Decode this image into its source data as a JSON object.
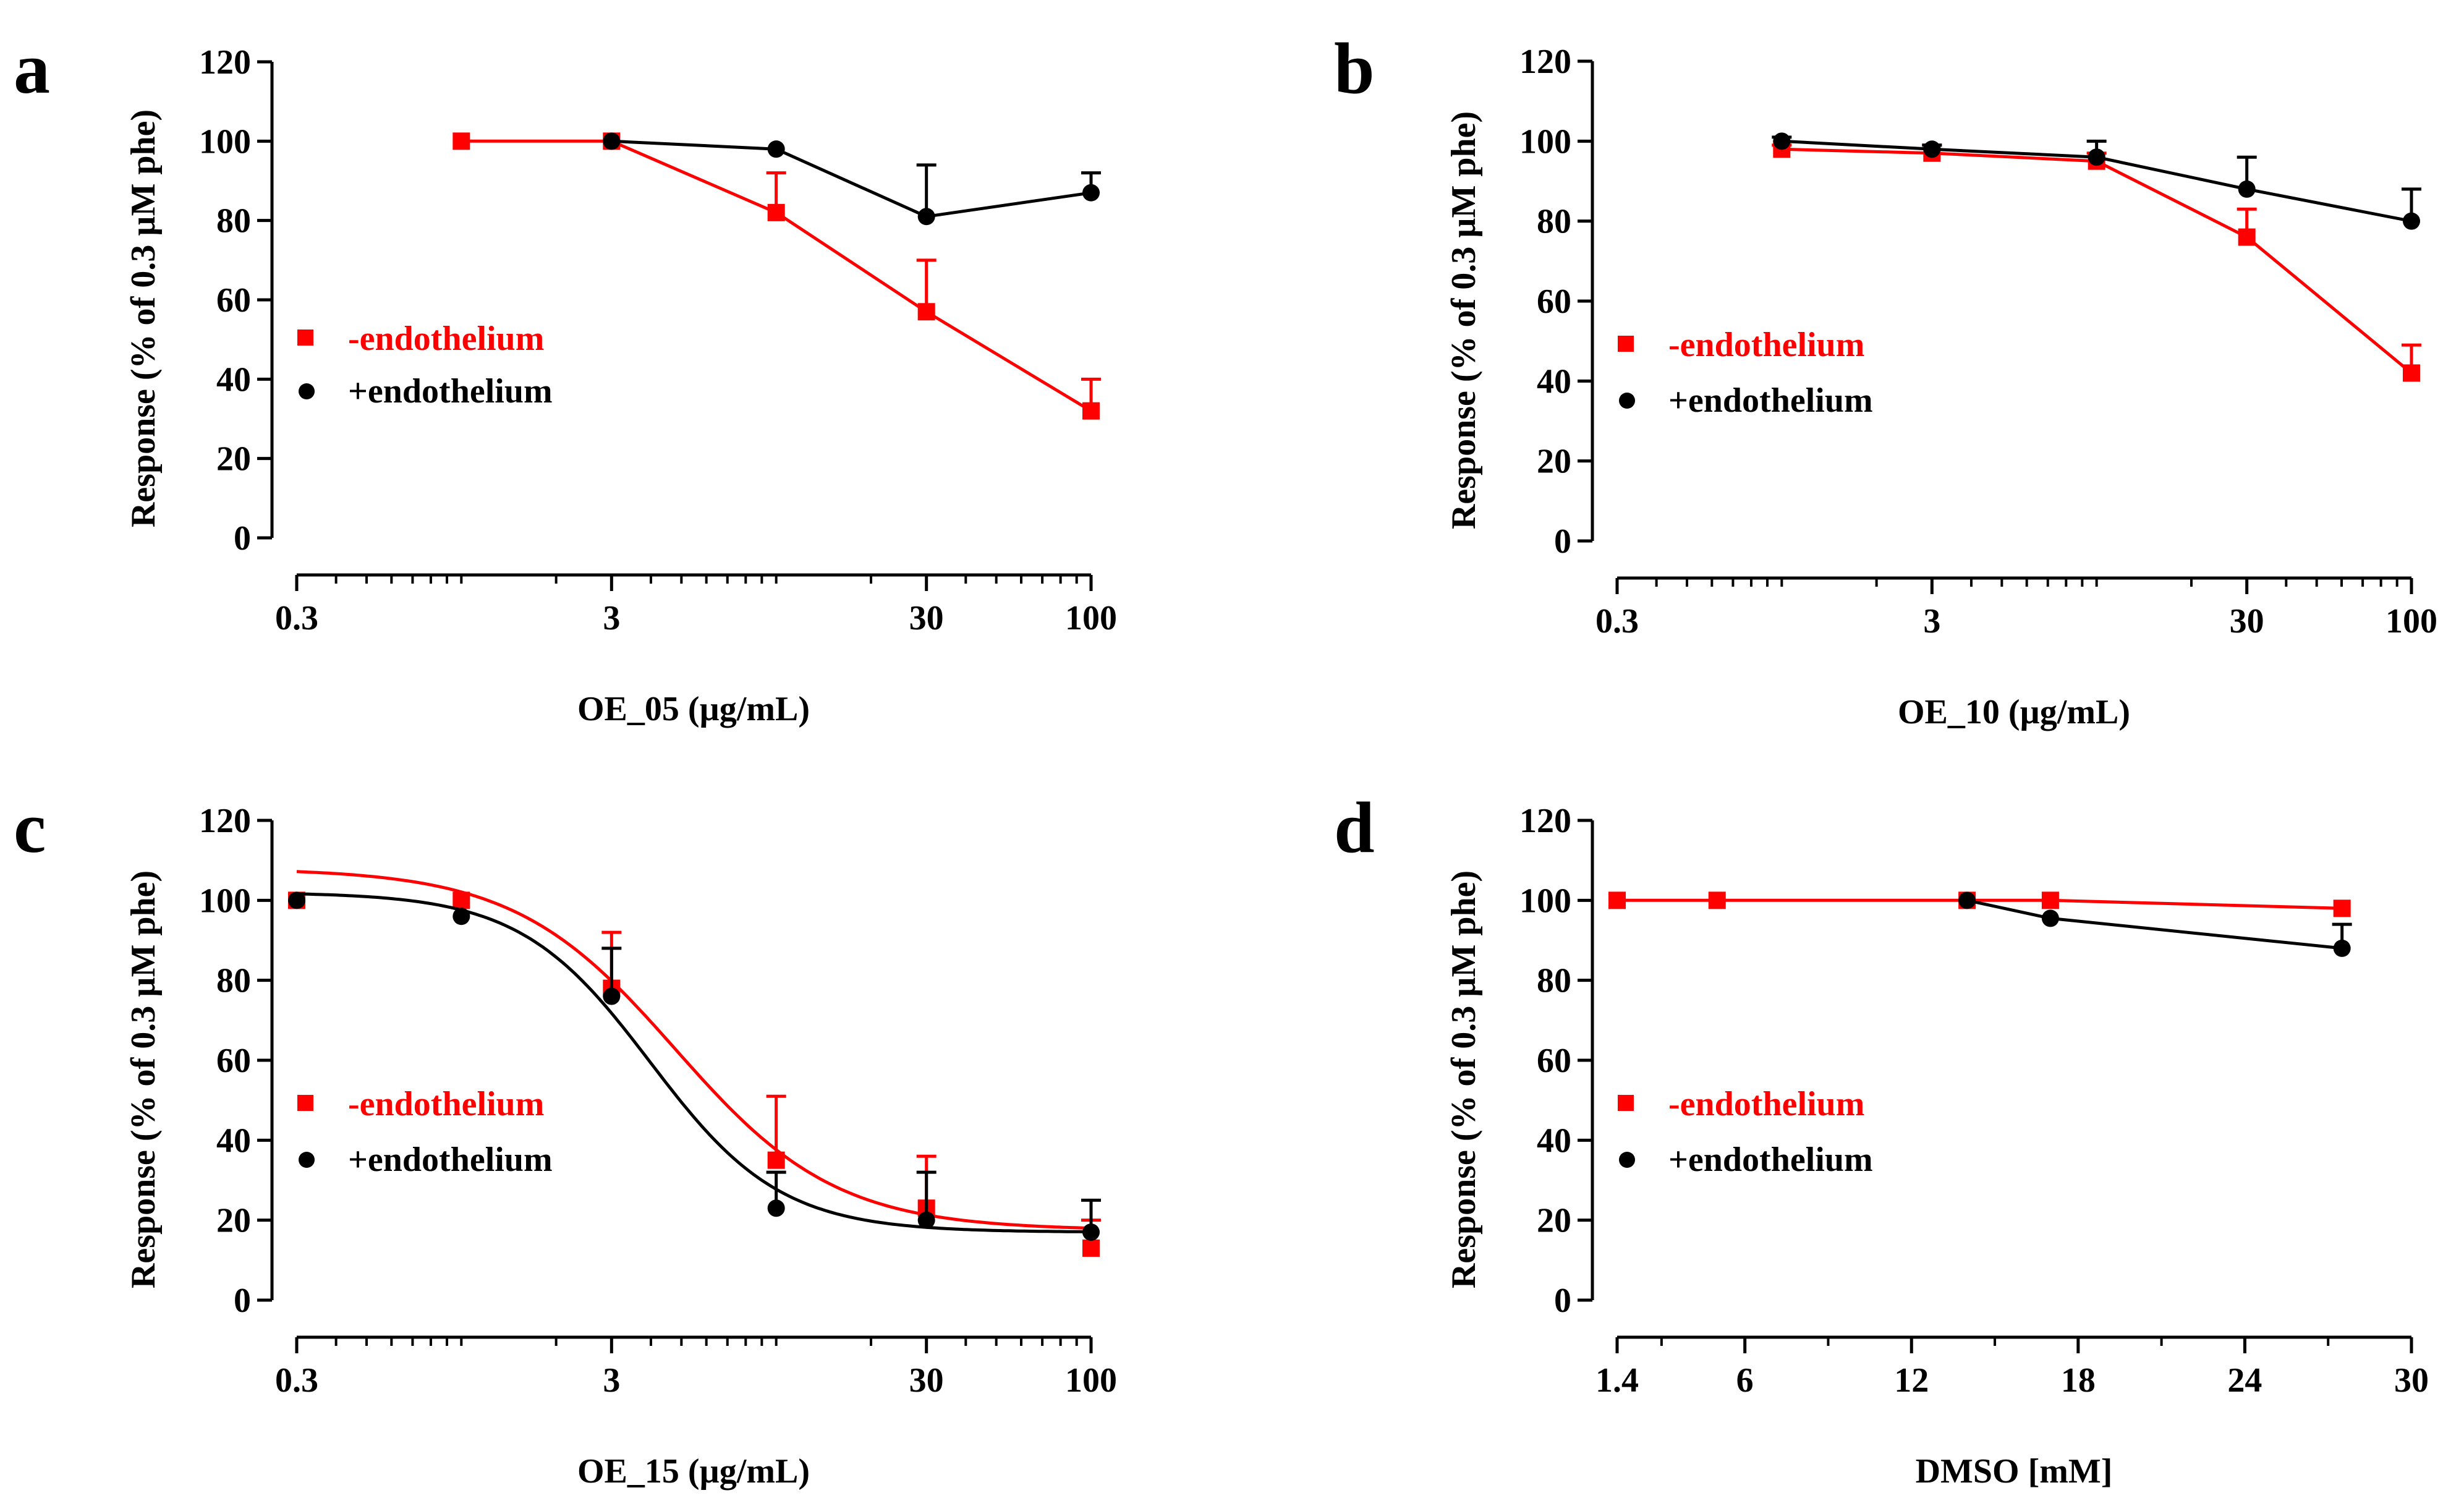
{
  "colors": {
    "minus": "#ff0000",
    "plus": "#000000"
  },
  "chart_data": [
    {
      "panel": "a",
      "type": "scatter",
      "xscale": "log",
      "xlim": [
        0.3,
        100
      ],
      "ylim": [
        0,
        120
      ],
      "xticks": [
        0.3,
        3,
        30,
        100
      ],
      "xtick_labels": [
        "0.3",
        "3",
        "30",
        "100"
      ],
      "yticks": [
        0,
        20,
        40,
        60,
        80,
        100,
        120
      ],
      "ytick_labels": [
        "0",
        "20",
        "40",
        "60",
        "80",
        "100",
        "120"
      ],
      "xlabel": "OE_05 (µg/mL)",
      "ylabel": "Response (% of 0.3 µM phe)",
      "legend": [
        "-endothelium",
        "+endothelium"
      ],
      "series": [
        {
          "name": "-endothelium",
          "color": "#ff0000",
          "marker": "square",
          "line": "connect",
          "x": [
            1,
            3,
            10,
            30,
            100
          ],
          "y": [
            100,
            100,
            82,
            57,
            32
          ],
          "err": [
            0,
            0,
            10,
            13,
            8
          ]
        },
        {
          "name": "+endothelium",
          "color": "#000000",
          "marker": "circle",
          "line": "connect",
          "x": [
            3,
            10,
            30,
            100
          ],
          "y": [
            100,
            98,
            81,
            87
          ],
          "err": [
            0,
            0,
            13,
            5
          ]
        }
      ]
    },
    {
      "panel": "b",
      "type": "scatter",
      "xscale": "log",
      "xlim": [
        0.3,
        100
      ],
      "ylim": [
        0,
        120
      ],
      "xticks": [
        0.3,
        3,
        30,
        100
      ],
      "xtick_labels": [
        "0.3",
        "3",
        "30",
        "100"
      ],
      "yticks": [
        0,
        20,
        40,
        60,
        80,
        100,
        120
      ],
      "ytick_labels": [
        "0",
        "20",
        "40",
        "60",
        "80",
        "100",
        "120"
      ],
      "xlabel": "OE_10 (µg/mL)",
      "ylabel": "Response (% of 0.3 µM phe)",
      "legend": [
        "-endothelium",
        "+endothelium"
      ],
      "series": [
        {
          "name": "-endothelium",
          "color": "#ff0000",
          "marker": "square",
          "line": "connect",
          "x": [
            1,
            3,
            10,
            30,
            100
          ],
          "y": [
            98,
            97,
            95,
            76,
            42
          ],
          "err": [
            1,
            2,
            2,
            7,
            7
          ]
        },
        {
          "name": "+endothelium",
          "color": "#000000",
          "marker": "circle",
          "line": "connect",
          "x": [
            1,
            3,
            10,
            30,
            100
          ],
          "y": [
            100,
            98,
            96,
            88,
            80
          ],
          "err": [
            1,
            1,
            4,
            8,
            8
          ]
        }
      ]
    },
    {
      "panel": "c",
      "type": "scatter",
      "xscale": "log",
      "xlim": [
        0.3,
        100
      ],
      "ylim": [
        0,
        120
      ],
      "xticks": [
        0.3,
        3,
        30,
        100
      ],
      "xtick_labels": [
        "0.3",
        "3",
        "30",
        "100"
      ],
      "yticks": [
        0,
        20,
        40,
        60,
        80,
        100,
        120
      ],
      "ytick_labels": [
        "0",
        "20",
        "40",
        "60",
        "80",
        "100",
        "120"
      ],
      "xlabel": "OE_15 (µg/mL)",
      "ylabel": "Response (% of 0.3 µM phe)",
      "legend": [
        "-endothelium",
        "+endothelium"
      ],
      "series": [
        {
          "name": "-endothelium",
          "color": "#ff0000",
          "marker": "square",
          "line": "fit",
          "fit": {
            "bottom": 17.5,
            "top": 108,
            "logIC50": 0.68,
            "hill": 1.7
          },
          "x": [
            0.3,
            1,
            3,
            10,
            30,
            100
          ],
          "y": [
            100,
            100,
            78,
            35,
            23,
            13
          ],
          "err": [
            0,
            0,
            14,
            16,
            13,
            7
          ]
        },
        {
          "name": "+endothelium",
          "color": "#000000",
          "marker": "circle",
          "line": "fit",
          "fit": {
            "bottom": 17,
            "top": 102,
            "logIC50": 0.6,
            "hill": 2.1
          },
          "x": [
            0.3,
            1,
            3,
            10,
            30,
            100
          ],
          "y": [
            100,
            96,
            76,
            23,
            20,
            17
          ],
          "err": [
            0,
            0,
            12,
            9,
            12,
            8
          ]
        }
      ]
    },
    {
      "panel": "d",
      "type": "scatter",
      "xscale": "linear",
      "xlim": [
        1.4,
        30
      ],
      "ylim": [
        0,
        120
      ],
      "xticks": [
        1.4,
        6,
        12,
        18,
        24,
        30
      ],
      "xtick_labels": [
        "1.4",
        "6",
        "12",
        "18",
        "24",
        "30"
      ],
      "yticks": [
        0,
        20,
        40,
        60,
        80,
        100,
        120
      ],
      "ytick_labels": [
        "0",
        "20",
        "40",
        "60",
        "80",
        "100",
        "120"
      ],
      "xlabel": "DMSO [mM]",
      "ylabel": "Response (% of 0.3 µM phe)",
      "legend": [
        "-endothelium",
        "+endothelium"
      ],
      "series": [
        {
          "name": "-endothelium",
          "color": "#ff0000",
          "marker": "square",
          "line": "connect",
          "x": [
            1.4,
            5,
            14,
            17,
            27.5
          ],
          "y": [
            100,
            100,
            100,
            100,
            98
          ],
          "err": [
            0,
            0,
            0,
            0,
            0
          ]
        },
        {
          "name": "+endothelium",
          "color": "#000000",
          "marker": "circle",
          "line": "connect",
          "x": [
            14,
            17,
            27.5
          ],
          "y": [
            100,
            95.5,
            88
          ],
          "err": [
            0,
            0,
            6
          ]
        }
      ]
    }
  ]
}
